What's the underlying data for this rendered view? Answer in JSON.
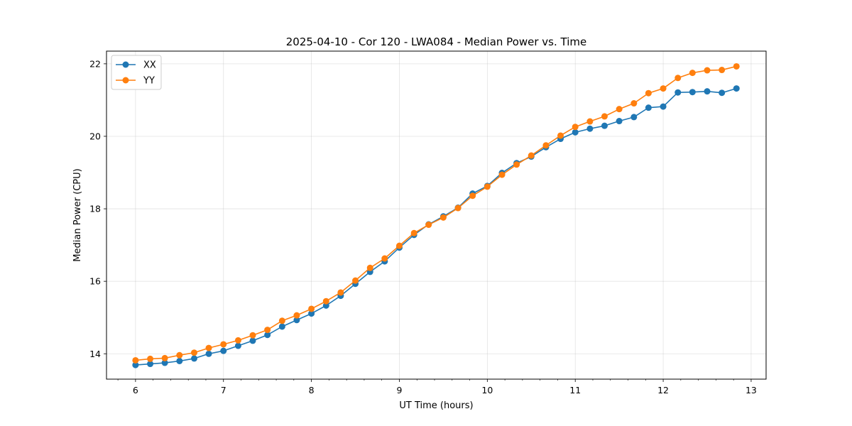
{
  "chart_data": {
    "type": "line",
    "title": "2025-04-10 - Cor 120 - LWA084 - Median Power vs. Time",
    "xlabel": "UT Time (hours)",
    "ylabel": "Median Power (CPU)",
    "xlim": [
      5.67,
      13.17
    ],
    "ylim": [
      13.3,
      22.35
    ],
    "xticks": [
      6,
      7,
      8,
      9,
      10,
      11,
      12,
      13
    ],
    "yticks": [
      14,
      16,
      18,
      20,
      22
    ],
    "grid": true,
    "legend_position": "top-left",
    "x": [
      6.0,
      6.167,
      6.333,
      6.5,
      6.667,
      6.833,
      7.0,
      7.167,
      7.333,
      7.5,
      7.667,
      7.833,
      8.0,
      8.167,
      8.333,
      8.5,
      8.667,
      8.833,
      9.0,
      9.167,
      9.333,
      9.5,
      9.667,
      9.833,
      10.0,
      10.167,
      10.333,
      10.5,
      10.667,
      10.833,
      11.0,
      11.167,
      11.333,
      11.5,
      11.667,
      11.833,
      12.0,
      12.167,
      12.333,
      12.5,
      12.667,
      12.833
    ],
    "series": [
      {
        "name": "XX",
        "color": "#1f77b4",
        "values": [
          13.69,
          13.72,
          13.75,
          13.8,
          13.87,
          14.0,
          14.08,
          14.22,
          14.36,
          14.52,
          14.75,
          14.93,
          15.11,
          15.33,
          15.6,
          15.93,
          16.26,
          16.55,
          16.93,
          17.28,
          17.57,
          17.79,
          18.03,
          18.42,
          18.63,
          18.99,
          19.26,
          19.44,
          19.7,
          19.93,
          20.11,
          20.21,
          20.29,
          20.42,
          20.53,
          20.79,
          20.82,
          21.21,
          21.22,
          21.24,
          21.2,
          21.32
        ]
      },
      {
        "name": "YY",
        "color": "#ff7f0e",
        "values": [
          13.82,
          13.86,
          13.88,
          13.96,
          14.03,
          14.16,
          14.26,
          14.37,
          14.51,
          14.66,
          14.91,
          15.06,
          15.24,
          15.45,
          15.69,
          16.02,
          16.37,
          16.63,
          16.98,
          17.33,
          17.56,
          17.76,
          18.02,
          18.36,
          18.61,
          18.94,
          19.22,
          19.47,
          19.75,
          20.02,
          20.26,
          20.41,
          20.55,
          20.75,
          20.91,
          21.19,
          21.32,
          21.61,
          21.75,
          21.82,
          21.83,
          21.93
        ]
      }
    ]
  }
}
